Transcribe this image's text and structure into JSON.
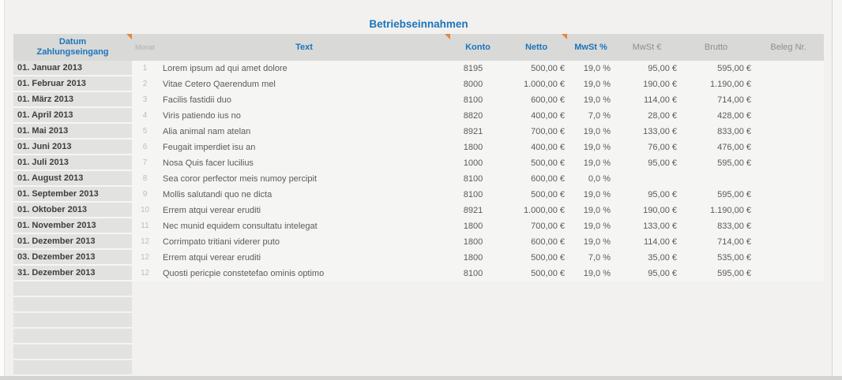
{
  "title": "Betriebseinnahmen",
  "colors": {
    "accent_blue": "#1c74ba",
    "comment_marker_orange": "#e5863c",
    "header_bg": "#d9d9d8",
    "date_column_bg": "#e2e2e1"
  },
  "table": {
    "columns": {
      "datum_line1": "Datum",
      "datum_line2": "Zahlungseingang",
      "monat": "Monat",
      "text": "Text",
      "konto": "Konto",
      "netto": "Netto",
      "mwst_pct": "MwSt %",
      "mwst_eur": "MwSt €",
      "brutto": "Brutto",
      "beleg": "Beleg Nr."
    },
    "comment_markers_on": [
      "datum",
      "text",
      "netto"
    ],
    "rows": [
      {
        "date": "01. Januar 2013",
        "monat": "1",
        "text": "Lorem ipsum ad qui amet dolore",
        "konto": "8195",
        "netto": "500,00 €",
        "mwst_pct": "19,0 %",
        "mwst_eur": "95,00 €",
        "brutto": "595,00 €",
        "beleg": ""
      },
      {
        "date": "01. Februar 2013",
        "monat": "2",
        "text": "Vitae Cetero Qaerendum mel",
        "konto": "8000",
        "netto": "1.000,00 €",
        "mwst_pct": "19,0 %",
        "mwst_eur": "190,00 €",
        "brutto": "1.190,00 €",
        "beleg": ""
      },
      {
        "date": "01. März 2013",
        "monat": "3",
        "text": "Facilis fastidii duo",
        "konto": "8100",
        "netto": "600,00 €",
        "mwst_pct": "19,0 %",
        "mwst_eur": "114,00 €",
        "brutto": "714,00 €",
        "beleg": ""
      },
      {
        "date": "01. April 2013",
        "monat": "4",
        "text": "Viris patiendo ius no",
        "konto": "8820",
        "netto": "400,00 €",
        "mwst_pct": "7,0 %",
        "mwst_eur": "28,00 €",
        "brutto": "428,00 €",
        "beleg": ""
      },
      {
        "date": "01. Mai 2013",
        "monat": "5",
        "text": "Alia animal nam atelan",
        "konto": "8921",
        "netto": "700,00 €",
        "mwst_pct": "19,0 %",
        "mwst_eur": "133,00 €",
        "brutto": "833,00 €",
        "beleg": ""
      },
      {
        "date": "01. Juni 2013",
        "monat": "6",
        "text": "Feugait imperdiet isu an",
        "konto": "1800",
        "netto": "400,00 €",
        "mwst_pct": "19,0 %",
        "mwst_eur": "76,00 €",
        "brutto": "476,00 €",
        "beleg": ""
      },
      {
        "date": "01. Juli 2013",
        "monat": "7",
        "text": "Nosa Quis facer lucilius",
        "konto": "1000",
        "netto": "500,00 €",
        "mwst_pct": "19,0 %",
        "mwst_eur": "95,00 €",
        "brutto": "595,00 €",
        "beleg": ""
      },
      {
        "date": "01. August 2013",
        "monat": "8",
        "text": "Sea coror perfector meis numoy percipit",
        "konto": "8100",
        "netto": "600,00 €",
        "mwst_pct": "0,0 %",
        "mwst_eur": "",
        "brutto": "",
        "beleg": ""
      },
      {
        "date": "01. September 2013",
        "monat": "9",
        "text": "Mollis salutandi quo ne dicta",
        "konto": "8100",
        "netto": "500,00 €",
        "mwst_pct": "19,0 %",
        "mwst_eur": "95,00 €",
        "brutto": "595,00 €",
        "beleg": ""
      },
      {
        "date": "01. Oktober 2013",
        "monat": "10",
        "text": "Errem atqui verear eruditi",
        "konto": "8921",
        "netto": "1.000,00 €",
        "mwst_pct": "19,0 %",
        "mwst_eur": "190,00 €",
        "brutto": "1.190,00 €",
        "beleg": ""
      },
      {
        "date": "01. November 2013",
        "monat": "11",
        "text": "Nec munid equidem consultatu intelegat",
        "konto": "1800",
        "netto": "700,00 €",
        "mwst_pct": "19,0 %",
        "mwst_eur": "133,00 €",
        "brutto": "833,00 €",
        "beleg": ""
      },
      {
        "date": "01. Dezember 2013",
        "monat": "12",
        "text": "Corrimpato tritiani viderer puto",
        "konto": "1800",
        "netto": "600,00 €",
        "mwst_pct": "19,0 %",
        "mwst_eur": "114,00 €",
        "brutto": "714,00 €",
        "beleg": ""
      },
      {
        "date": "03. Dezember 2013",
        "monat": "12",
        "text": "Errem atqui verear eruditi",
        "konto": "1800",
        "netto": "500,00 €",
        "mwst_pct": "7,0 %",
        "mwst_eur": "35,00 €",
        "brutto": "535,00 €",
        "beleg": ""
      },
      {
        "date": "31. Dezember 2013",
        "monat": "12",
        "text": "Quosti pericpie constetefao ominis optimo",
        "konto": "8100",
        "netto": "500,00 €",
        "mwst_pct": "19,0 %",
        "mwst_eur": "95,00 €",
        "brutto": "595,00 €",
        "beleg": ""
      }
    ],
    "empty_row_count": 6
  }
}
